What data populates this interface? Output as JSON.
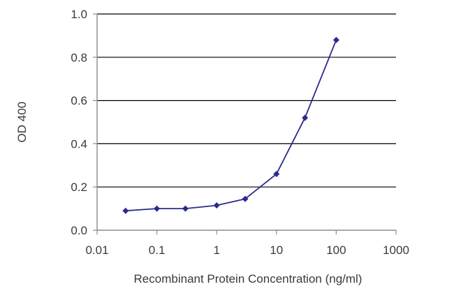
{
  "chart_data": {
    "type": "line",
    "xscale": "log",
    "xlabel": "Recombinant Protein Concentration (ng/ml)",
    "ylabel": "OD 400",
    "xlim": [
      0.01,
      1000
    ],
    "ylim": [
      0.0,
      1.0
    ],
    "x_tick_labels": [
      "0.01",
      "0.1",
      "1",
      "10",
      "100",
      "1000"
    ],
    "y_tick_labels": [
      "0.0",
      "0.2",
      "0.4",
      "0.6",
      "0.8",
      "1.0"
    ],
    "grid": "horizontal",
    "legend": "none",
    "colors": {
      "series": "#2b2b8c",
      "grid": "#000000",
      "axis": "#8c8c8c",
      "text": "#3a3a3a"
    },
    "series": [
      {
        "x": [
          0.03,
          0.1,
          0.3,
          1,
          3,
          10,
          30,
          100
        ],
        "y": [
          0.09,
          0.1,
          0.1,
          0.115,
          0.145,
          0.26,
          0.52,
          0.88
        ]
      }
    ]
  }
}
